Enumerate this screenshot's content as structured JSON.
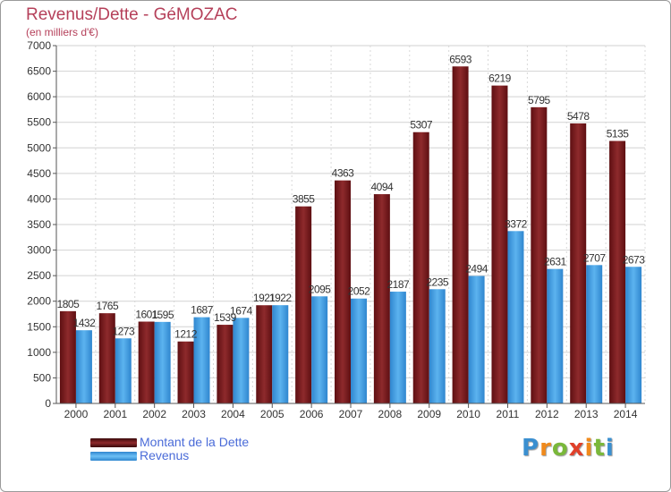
{
  "header": {
    "title": "Revenus/Dette - GéMOZAC",
    "subtitle": "(en milliers d'€)"
  },
  "logo": {
    "text": "Proxiti"
  },
  "colors": {
    "debt": "#7a1a1c",
    "revenue": "#3f9be0",
    "title": "#b5405a",
    "grid": "#d0d0d0"
  },
  "legend": {
    "debt_label": "Montant de la Dette",
    "revenue_label": "Revenus"
  },
  "chart_data": {
    "type": "bar",
    "categories": [
      "2000",
      "2001",
      "2002",
      "2003",
      "2004",
      "2005",
      "2006",
      "2007",
      "2008",
      "2009",
      "2010",
      "2011",
      "2012",
      "2013",
      "2014"
    ],
    "series": [
      {
        "name": "Montant de la Dette",
        "values": [
          1805,
          1765,
          1601,
          1212,
          1539,
          1921,
          3855,
          4363,
          4094,
          5307,
          6593,
          6219,
          5795,
          5478,
          5135
        ]
      },
      {
        "name": "Revenus",
        "values": [
          1432,
          1273,
          1595,
          1687,
          1674,
          1922,
          2095,
          2052,
          2187,
          2235,
          2494,
          3372,
          2631,
          2707,
          2673
        ]
      }
    ],
    "title": "Revenus/Dette - GéMOZAC",
    "ylabel": "(en milliers d'€)",
    "ylim": [
      0,
      7000
    ],
    "yticks": [
      0,
      500,
      1000,
      1500,
      2000,
      2500,
      3000,
      3500,
      4000,
      4500,
      5000,
      5500,
      6000,
      6500,
      7000
    ],
    "grid": true,
    "legend_position": "bottom-left"
  }
}
